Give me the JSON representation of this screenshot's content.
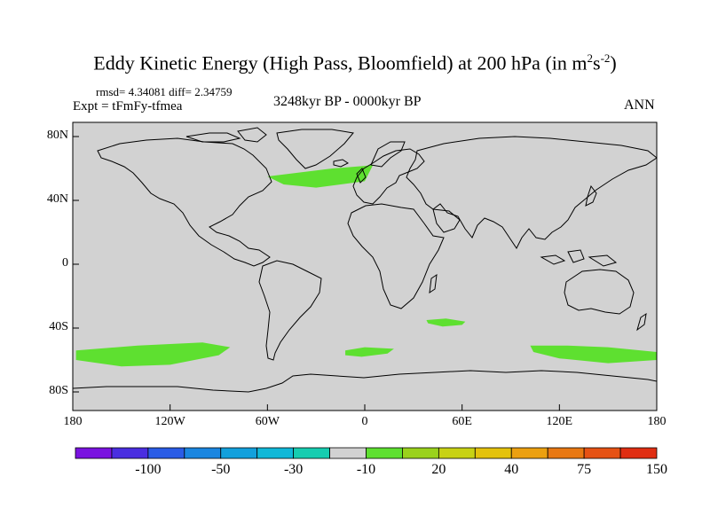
{
  "header": {
    "title_main": "Eddy Kinetic Energy (High Pass, Bloomfield) at 200 hPa (in m",
    "title_sup1": "2",
    "title_s": "s",
    "title_sup2": "-2",
    "title_close": ")",
    "stats": "rmsd= 4.34081 diff= 2.34759",
    "experiment": "Expt = tFmFy-tfmea",
    "period": "3248kyr BP - 0000kyr BP",
    "season": "ANN"
  },
  "axes": {
    "y_labels": [
      "80N",
      "40N",
      "0",
      "40S",
      "80S"
    ],
    "y_values": [
      80,
      40,
      0,
      -40,
      -80
    ],
    "x_labels": [
      "180",
      "120W",
      "60W",
      "0",
      "60E",
      "120E",
      "180"
    ],
    "x_values": [
      -180,
      -120,
      -60,
      0,
      60,
      120,
      180
    ]
  },
  "colorbar": {
    "colors": [
      "#7a12e0",
      "#4a2ee0",
      "#2a5ce6",
      "#1a86e0",
      "#12a0dc",
      "#10b8d8",
      "#16cdb0",
      "#d2d2d2",
      "#5ee030",
      "#9ad21c",
      "#c8d214",
      "#e4c20c",
      "#eca010",
      "#e87812",
      "#e65214",
      "#e02e12"
    ],
    "labels": [
      "-100",
      "-50",
      "-30",
      "-10",
      "20",
      "40",
      "75",
      "150"
    ]
  },
  "map": {
    "land_fill": "#d2d2d2",
    "anomaly_color": "#5ee030",
    "regions": [
      {
        "name": "north-atlantic",
        "lon": [
          -60,
          -20,
          5,
          0,
          -30,
          -50
        ],
        "lat": [
          55,
          60,
          62,
          52,
          48,
          50
        ]
      },
      {
        "name": "south-pacific",
        "lon": [
          -178,
          -140,
          -100,
          -83,
          -90,
          -120,
          -150,
          -178
        ],
        "lat": [
          -54,
          -51,
          -49,
          -52,
          -57,
          -63,
          -64,
          -60
        ]
      },
      {
        "name": "south-atlantic",
        "lon": [
          -12,
          0,
          18,
          14,
          -2,
          -12
        ],
        "lat": [
          -54,
          -52,
          -53,
          -56,
          -58,
          -57
        ]
      },
      {
        "name": "southern-indian",
        "lon": [
          38,
          50,
          62,
          60,
          48,
          39
        ],
        "lat": [
          -35,
          -34,
          -36,
          -38,
          -39,
          -37
        ]
      },
      {
        "name": "south-west-pacific",
        "lon": [
          102,
          125,
          150,
          180,
          180,
          150,
          120,
          104
        ],
        "lat": [
          -51,
          -51,
          -52,
          -55,
          -60,
          -62,
          -59,
          -55
        ]
      }
    ]
  }
}
